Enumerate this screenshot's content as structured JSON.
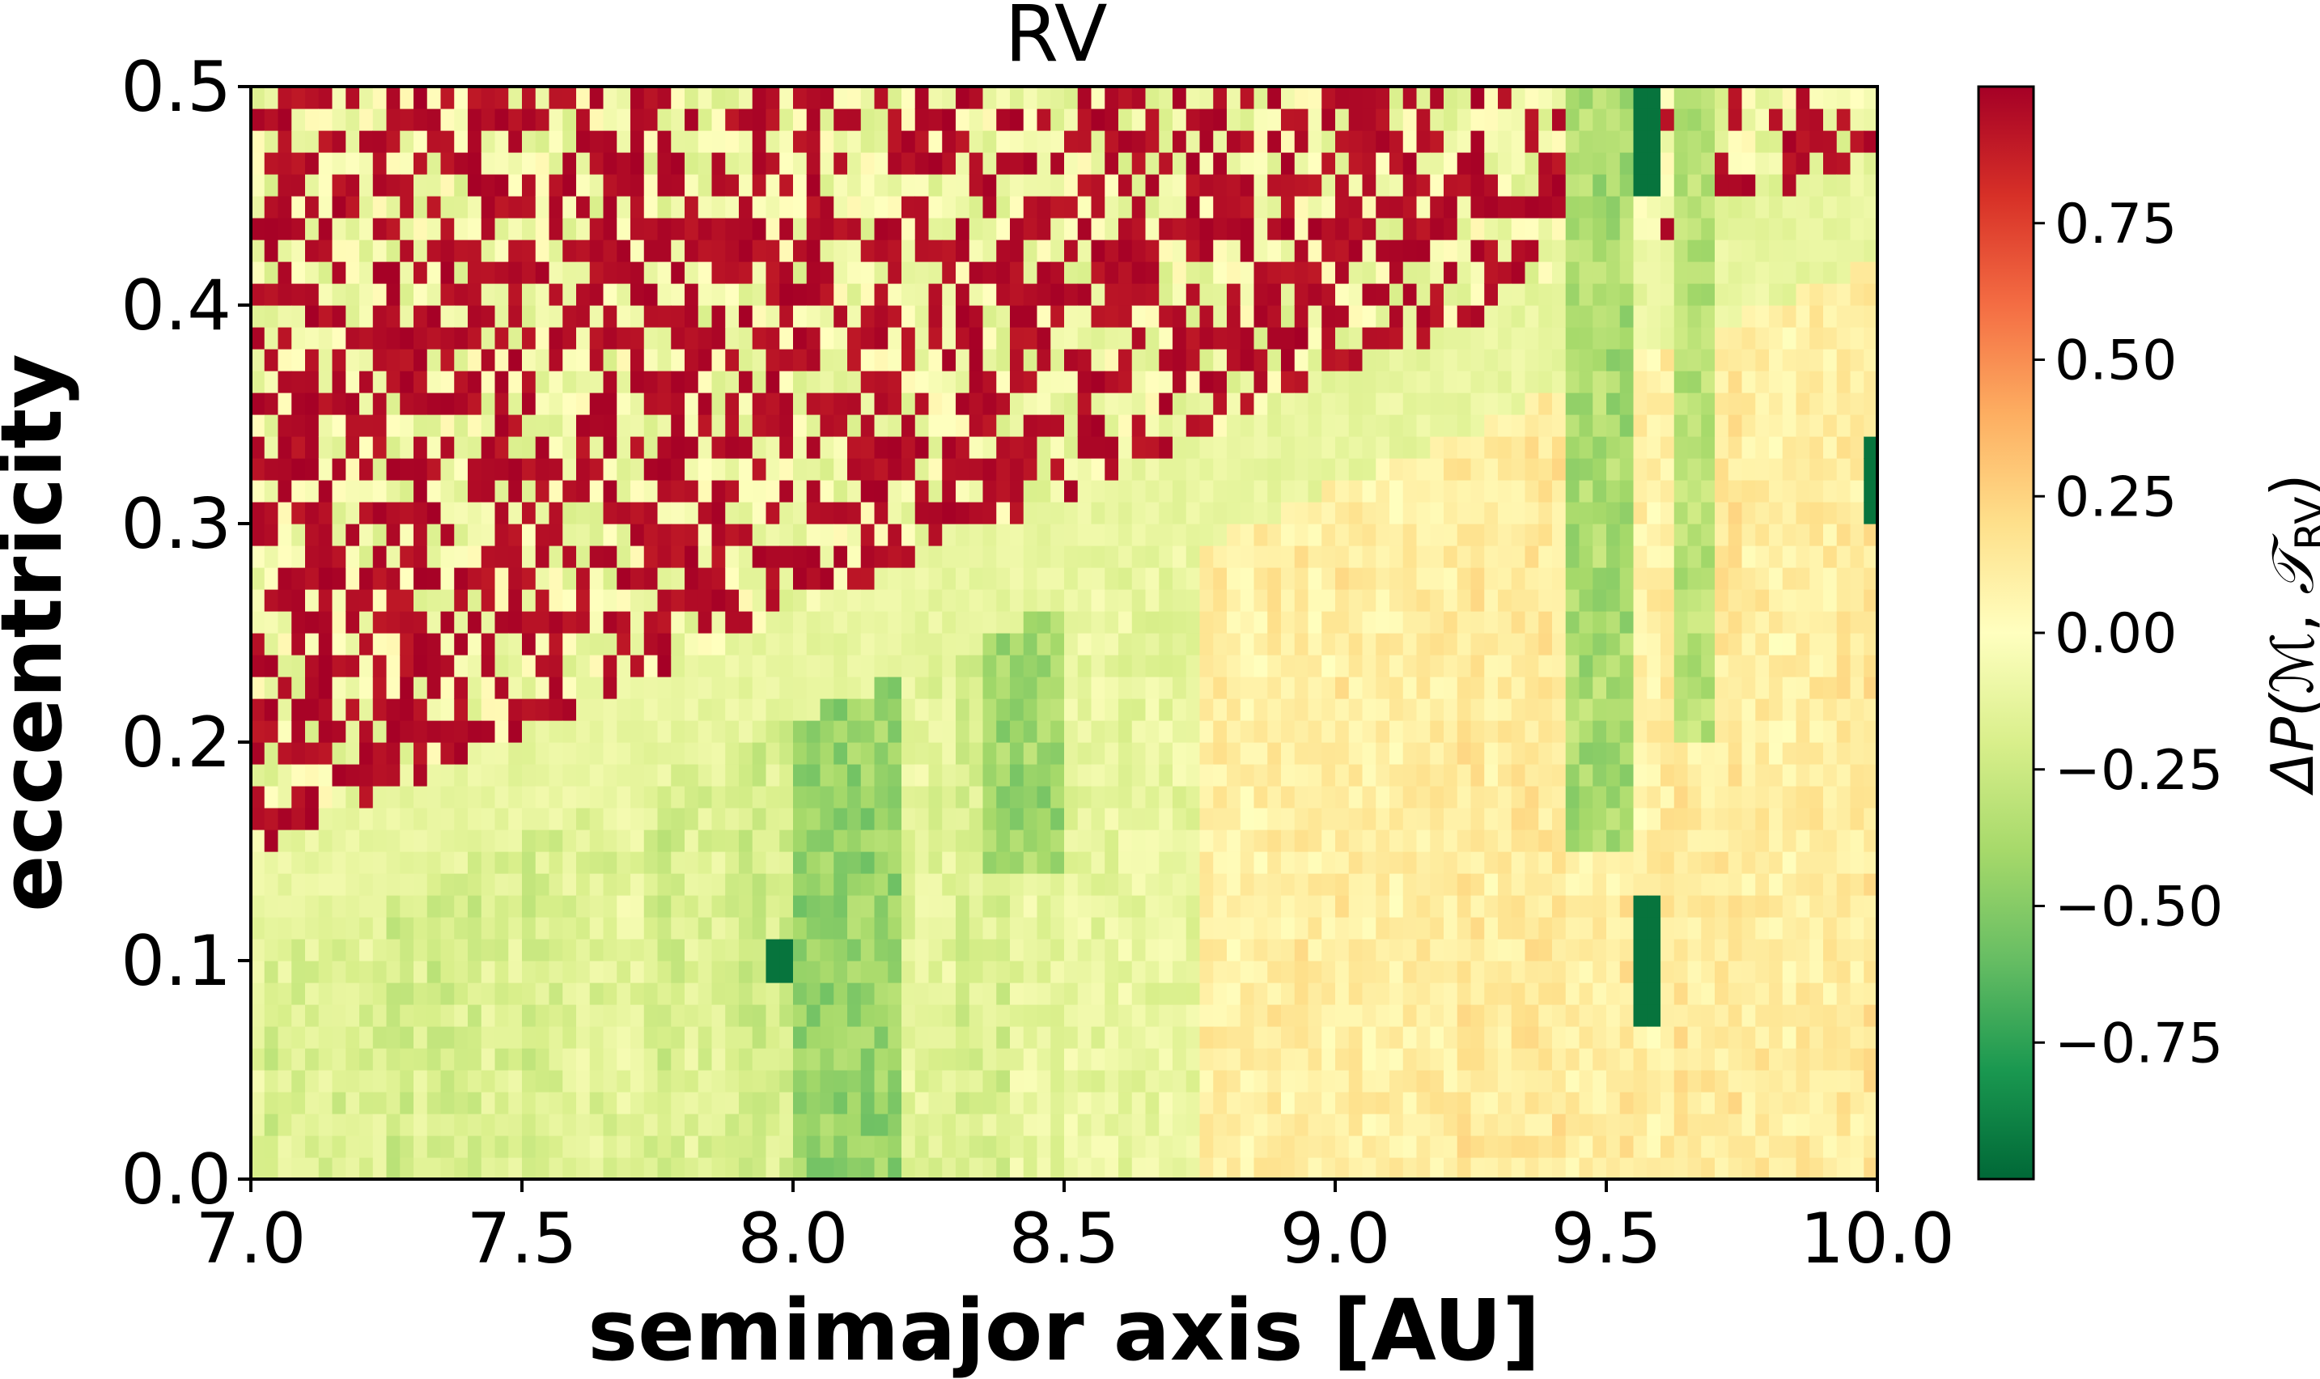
{
  "chart_data": {
    "type": "heatmap",
    "title": "RV",
    "xlabel": "semimajor axis [AU]",
    "ylabel": "eccentricity",
    "xlim": [
      7.0,
      10.0
    ],
    "ylim": [
      0.0,
      0.5
    ],
    "xticks": [
      "7.0",
      "7.5",
      "8.0",
      "8.5",
      "9.0",
      "9.5",
      "10.0"
    ],
    "yticks": [
      "0.0",
      "0.1",
      "0.2",
      "0.3",
      "0.4",
      "0.5"
    ],
    "grid": {
      "x_bins": 120,
      "y_bins": 50
    },
    "colorbar": {
      "label_main": "ΔP(",
      "label_m": "ℳ",
      "label_sep": ", ",
      "label_t": "𝒯",
      "label_sub": "RV",
      "label_close": ")",
      "range": [
        -1.0,
        1.0
      ],
      "ticks": [
        "0.75",
        "0.50",
        "0.25",
        "0.00",
        "−0.25",
        "−0.50",
        "−0.75"
      ],
      "tick_values": [
        0.75,
        0.5,
        0.25,
        0.0,
        -0.25,
        -0.5,
        -0.75
      ],
      "colormap": "RdYlGn_r",
      "colors": [
        "#006837",
        "#1a9850",
        "#66bd63",
        "#a6d96a",
        "#d9ef8b",
        "#ffffbf",
        "#fee08b",
        "#fdae61",
        "#f46d43",
        "#d73027",
        "#a50026"
      ]
    },
    "features": [
      {
        "name": "high-eccentricity unstable region",
        "value": 0.95,
        "description_boundary_e_at_a": [
          [
            7.0,
            0.15
          ],
          [
            8.0,
            0.26
          ],
          [
            9.5,
            0.42
          ],
          [
            10.0,
            0.47
          ]
        ]
      },
      {
        "name": "resonance band",
        "a": 9.57,
        "value": -0.95,
        "e_ranges": [
          [
            0.07,
            0.13
          ],
          [
            0.45,
            0.5
          ]
        ]
      },
      {
        "name": "edge band",
        "a": 9.98,
        "value": -0.95,
        "e_ranges": [
          [
            0.3,
            0.34
          ]
        ]
      },
      {
        "name": "moderate green band",
        "a_range": [
          8.0,
          8.2
        ],
        "e_range": [
          0.0,
          0.23
        ],
        "value": -0.45
      },
      {
        "name": "positive region",
        "a_range": [
          8.8,
          10.0
        ],
        "e_range": [
          0.0,
          0.3
        ],
        "value": 0.12
      }
    ]
  }
}
